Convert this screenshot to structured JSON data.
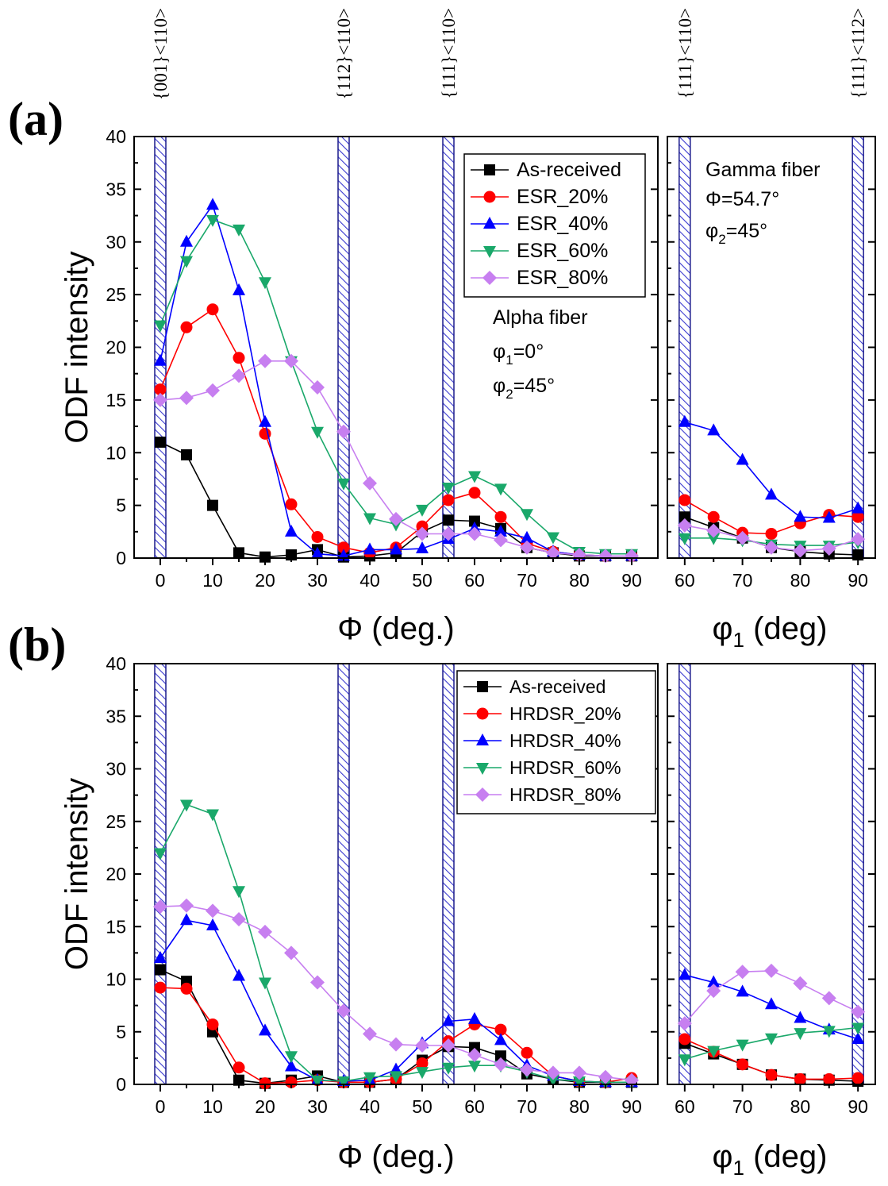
{
  "top_labels": [
    {
      "text": "{001}<110>",
      "panel": "left",
      "x": 0
    },
    {
      "text": "{112}<110>",
      "panel": "left",
      "x": 35
    },
    {
      "text": "{111}<110>",
      "panel": "left",
      "x": 55
    },
    {
      "text": "{111}<110>",
      "panel": "right",
      "x": 60
    },
    {
      "text": "{111}<112>",
      "panel": "right",
      "x": 90
    }
  ],
  "chart_data": [
    {
      "type": "line",
      "panel": "a",
      "panel_label": "(a)",
      "ylabel": "ODF intensity",
      "ylim": [
        0,
        40
      ],
      "yticks": [
        0,
        5,
        10,
        15,
        20,
        25,
        30,
        35,
        40
      ],
      "left": {
        "xlabel": "Φ (deg.)",
        "xlim": [
          -5,
          95
        ],
        "xticks": [
          0,
          10,
          20,
          30,
          40,
          50,
          60,
          70,
          80,
          90
        ],
        "hatched_bands": [
          0,
          35,
          55
        ],
        "annotations": [
          {
            "type": "text",
            "text": "Alpha fiber"
          },
          {
            "type": "sub",
            "base": "φ",
            "sub": "1",
            "rest": "=0°"
          },
          {
            "type": "sub",
            "base": "φ",
            "sub": "2",
            "rest": "=45°"
          }
        ],
        "x": [
          0,
          5,
          10,
          15,
          20,
          25,
          30,
          35,
          40,
          45,
          50,
          55,
          60,
          65,
          70,
          75,
          80,
          85,
          90
        ],
        "series": [
          {
            "name": "As-received",
            "color": "#000000",
            "marker": "square",
            "values": [
              11.0,
              9.8,
              5.0,
              0.5,
              0.1,
              0.3,
              0.8,
              0.1,
              0.2,
              0.5,
              2.5,
              3.6,
              3.5,
              2.8,
              1.0,
              0.5,
              0.2,
              0.2,
              0.2
            ]
          },
          {
            "name": "ESR_20%",
            "color": "#ff0000",
            "marker": "circle",
            "values": [
              16.0,
              21.9,
              23.6,
              19.0,
              11.8,
              5.1,
              2.0,
              1.0,
              0.5,
              1.0,
              3.0,
              5.5,
              6.2,
              3.9,
              1.4,
              0.6,
              0.3,
              0.2,
              0.2
            ]
          },
          {
            "name": "ESR_40%",
            "color": "#0000ff",
            "marker": "triangle-up",
            "values": [
              18.7,
              30.0,
              33.5,
              25.4,
              12.9,
              2.5,
              0.4,
              0.2,
              0.8,
              0.8,
              0.9,
              1.8,
              2.8,
              2.5,
              1.9,
              0.6,
              0.3,
              0.2,
              0.2
            ]
          },
          {
            "name": "ESR_60%",
            "color": "#1aa86a",
            "marker": "triangle-down",
            "values": [
              22.1,
              28.2,
              32.1,
              31.2,
              26.2,
              18.7,
              12.0,
              7.1,
              3.8,
              3.2,
              4.6,
              6.7,
              7.8,
              6.6,
              4.2,
              2.0,
              0.6,
              0.4,
              0.4
            ]
          },
          {
            "name": "ESR_80%",
            "color": "#c77ff0",
            "marker": "diamond",
            "values": [
              15.0,
              15.2,
              15.9,
              17.3,
              18.7,
              18.7,
              16.2,
              12.0,
              7.1,
              3.7,
              2.3,
              2.3,
              2.3,
              1.7,
              1.0,
              0.5,
              0.3,
              0.2,
              0.2
            ]
          }
        ]
      },
      "right": {
        "xlabel_base": "φ",
        "xlabel_sub": "1",
        "xlabel_rest": " (deg)",
        "xlim": [
          57,
          93
        ],
        "xticks": [
          60,
          70,
          80,
          90
        ],
        "hatched_bands": [
          60,
          90
        ],
        "annotations": [
          {
            "type": "text",
            "text": "Gamma fiber"
          },
          {
            "type": "text",
            "text": "Φ=54.7°"
          },
          {
            "type": "sub",
            "base": "φ",
            "sub": "2",
            "rest": "=45°"
          }
        ],
        "x": [
          60,
          65,
          70,
          75,
          80,
          85,
          90
        ],
        "series": [
          {
            "name": "As-received",
            "color": "#000000",
            "marker": "square",
            "values": [
              3.9,
              2.9,
              1.9,
              1.0,
              0.6,
              0.4,
              0.3
            ]
          },
          {
            "name": "ESR_20%",
            "color": "#ff0000",
            "marker": "circle",
            "values": [
              5.5,
              3.9,
              2.4,
              2.3,
              3.3,
              4.1,
              3.9
            ]
          },
          {
            "name": "ESR_40%",
            "color": "#0000ff",
            "marker": "triangle-up",
            "values": [
              12.9,
              12.1,
              9.3,
              6.0,
              3.9,
              3.8,
              4.7
            ]
          },
          {
            "name": "ESR_60%",
            "color": "#1aa86a",
            "marker": "triangle-down",
            "values": [
              1.9,
              1.9,
              1.7,
              1.3,
              1.2,
              1.2,
              1.5
            ]
          },
          {
            "name": "ESR_80%",
            "color": "#c77ff0",
            "marker": "diamond",
            "values": [
              3.1,
              2.6,
              1.9,
              1.0,
              0.7,
              0.9,
              1.8
            ]
          }
        ]
      }
    },
    {
      "type": "line",
      "panel": "b",
      "panel_label": "(b)",
      "ylabel": "ODF intensity",
      "ylim": [
        0,
        40
      ],
      "yticks": [
        0,
        5,
        10,
        15,
        20,
        25,
        30,
        35,
        40
      ],
      "left": {
        "xlabel": "Φ (deg.)",
        "xlim": [
          -5,
          95
        ],
        "xticks": [
          0,
          10,
          20,
          30,
          40,
          50,
          60,
          70,
          80,
          90
        ],
        "hatched_bands": [
          0,
          35,
          55
        ],
        "annotations": [],
        "x": [
          0,
          5,
          10,
          15,
          20,
          25,
          30,
          35,
          40,
          45,
          50,
          55,
          60,
          65,
          70,
          75,
          80,
          85,
          90
        ],
        "series": [
          {
            "name": "As-received",
            "color": "#000000",
            "marker": "square",
            "values": [
              10.9,
              9.8,
              5.0,
              0.4,
              0.1,
              0.4,
              0.8,
              0.2,
              0.2,
              0.5,
              2.3,
              3.6,
              3.5,
              2.7,
              1.0,
              0.5,
              0.2,
              0.2,
              0.2
            ]
          },
          {
            "name": "HRDSR_20%",
            "color": "#ff0000",
            "marker": "circle",
            "values": [
              9.2,
              9.1,
              5.7,
              1.6,
              0.1,
              0.2,
              0.4,
              0.2,
              0.2,
              0.5,
              2.0,
              4.1,
              5.7,
              5.2,
              3.0,
              0.8,
              0.3,
              0.2,
              0.6
            ]
          },
          {
            "name": "HRDSR_40%",
            "color": "#0000ff",
            "marker": "triangle-up",
            "values": [
              12.0,
              15.6,
              15.1,
              10.3,
              5.1,
              1.7,
              0.4,
              0.3,
              0.4,
              1.4,
              3.9,
              6.0,
              6.2,
              4.2,
              1.8,
              0.8,
              0.3,
              0.2,
              0.2
            ]
          },
          {
            "name": "HRDSR_60%",
            "color": "#1aa86a",
            "marker": "triangle-down",
            "values": [
              22.0,
              26.6,
              25.7,
              18.4,
              9.7,
              2.7,
              0.4,
              0.3,
              0.7,
              0.8,
              1.2,
              1.6,
              1.8,
              1.8,
              1.2,
              0.5,
              0.3,
              0.2,
              0.2
            ]
          },
          {
            "name": "HRDSR_80%",
            "color": "#c77ff0",
            "marker": "diamond",
            "values": [
              16.9,
              17.0,
              16.5,
              15.7,
              14.5,
              12.5,
              9.7,
              7.0,
              4.8,
              3.8,
              3.7,
              3.7,
              2.8,
              1.9,
              1.4,
              1.1,
              1.1,
              0.7,
              0.4
            ]
          }
        ]
      },
      "right": {
        "xlabel_base": "φ",
        "xlabel_sub": "1",
        "xlabel_rest": " (deg)",
        "xlim": [
          57,
          93
        ],
        "xticks": [
          60,
          70,
          80,
          90
        ],
        "hatched_bands": [
          60,
          90
        ],
        "annotations": [],
        "x": [
          60,
          65,
          70,
          75,
          80,
          85,
          90
        ],
        "series": [
          {
            "name": "As-received",
            "color": "#000000",
            "marker": "square",
            "values": [
              3.9,
              2.9,
              1.9,
              0.9,
              0.5,
              0.4,
              0.3
            ]
          },
          {
            "name": "HRDSR_20%",
            "color": "#ff0000",
            "marker": "circle",
            "values": [
              4.3,
              3.1,
              1.9,
              0.9,
              0.5,
              0.5,
              0.6
            ]
          },
          {
            "name": "HRDSR_40%",
            "color": "#0000ff",
            "marker": "triangle-up",
            "values": [
              10.4,
              9.7,
              8.8,
              7.6,
              6.3,
              5.2,
              4.3
            ]
          },
          {
            "name": "HRDSR_60%",
            "color": "#1aa86a",
            "marker": "triangle-down",
            "values": [
              2.4,
              3.2,
              3.8,
              4.4,
              4.9,
              5.1,
              5.4
            ]
          },
          {
            "name": "HRDSR_80%",
            "color": "#c77ff0",
            "marker": "diamond",
            "values": [
              5.8,
              8.9,
              10.7,
              10.8,
              9.6,
              8.2,
              6.9
            ]
          }
        ]
      }
    }
  ]
}
